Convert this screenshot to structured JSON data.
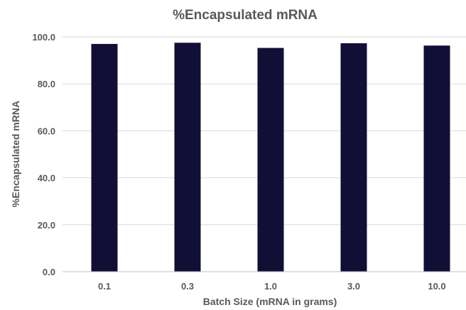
{
  "chart_data": {
    "type": "bar",
    "title": "%Encapsulated mRNA",
    "xlabel": "Batch Size (mRNA in grams)",
    "ylabel": "%Encapsulated mRNA",
    "categories": [
      "0.1",
      "0.3",
      "1.0",
      "3.0",
      "10.0"
    ],
    "values": [
      97.0,
      97.5,
      95.3,
      97.3,
      96.3
    ],
    "ylim": [
      0,
      100
    ],
    "yticks": [
      "0.0",
      "20.0",
      "40.0",
      "60.0",
      "80.0",
      "100.0"
    ],
    "grid": true,
    "legend": "none",
    "bar_color": "#120f36"
  }
}
